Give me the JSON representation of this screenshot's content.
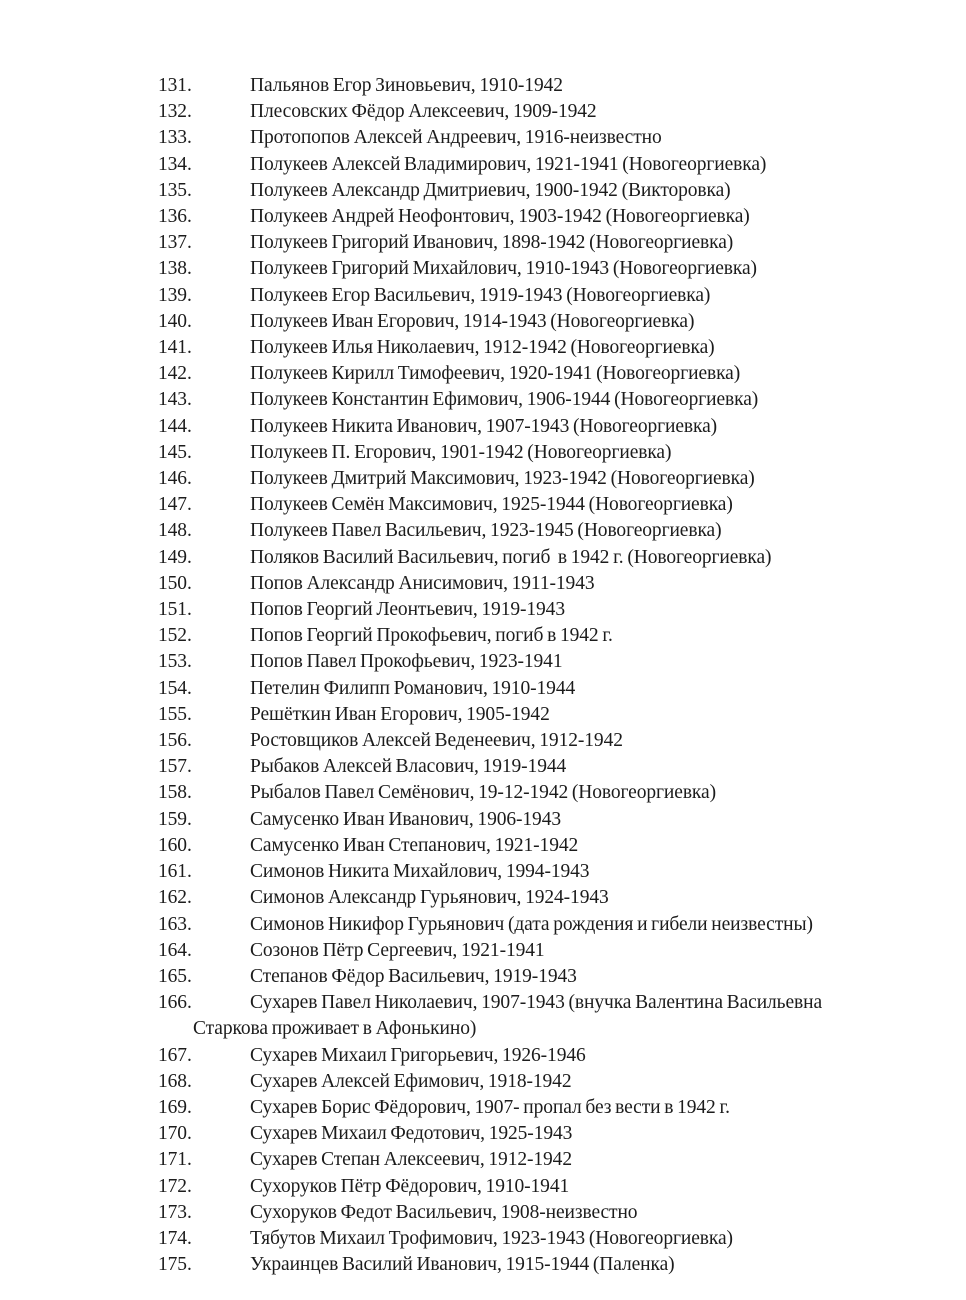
{
  "page": {
    "background_color": "#ffffff",
    "text_color": "#1c1c1c",
    "list": {
      "entries": [
        {
          "num": "131.",
          "text": "Пальянов Егор Зиновьевич, 1910-1942"
        },
        {
          "num": "132.",
          "text": "Плесовских Фёдор Алексеевич, 1909-1942"
        },
        {
          "num": "133.",
          "text": "Протопопов Алексей Андреевич, 1916-неизвестно"
        },
        {
          "num": "134.",
          "text": "Полукеев Алексей Владимирович, 1921-1941 (Новогеоргиевка)"
        },
        {
          "num": "135.",
          "text": "Полукеев Александр Дмитриевич, 1900-1942 (Викторовка)"
        },
        {
          "num": "136.",
          "text": "Полукеев Андрей Неофонтович, 1903-1942 (Новогеоргиевка)"
        },
        {
          "num": "137.",
          "text": "Полукеев Григорий Иванович, 1898-1942 (Новогеоргиевка)"
        },
        {
          "num": "138.",
          "text": "Полукеев Григорий Михайлович, 1910-1943 (Новогеоргиевка)"
        },
        {
          "num": "139.",
          "text": "Полукеев Егор Васильевич, 1919-1943 (Новогеоргиевка)"
        },
        {
          "num": "140.",
          "text": "Полукеев Иван Егорович, 1914-1943 (Новогеоргиевка)"
        },
        {
          "num": "141.",
          "text": "Полукеев Илья Николаевич, 1912-1942 (Новогеоргиевка)"
        },
        {
          "num": "142.",
          "text": "Полукеев Кирилл Тимофеевич, 1920-1941 (Новогеоргиевка)"
        },
        {
          "num": "143.",
          "text": "Полукеев Константин Ефимович, 1906-1944 (Новогеоргиевка)"
        },
        {
          "num": "144.",
          "text": "Полукеев Никита Иванович, 1907-1943 (Новогеоргиевка)"
        },
        {
          "num": "145.",
          "text": "Полукеев П. Егорович, 1901-1942 (Новогеоргиевка)"
        },
        {
          "num": "146.",
          "text": "Полукеев Дмитрий Максимович, 1923-1942 (Новогеоргиевка)"
        },
        {
          "num": "147.",
          "text": "Полукеев Семён Максимович, 1925-1944 (Новогеоргиевка)"
        },
        {
          "num": "148.",
          "text": "Полукеев Павел Васильевич, 1923-1945 (Новогеоргиевка)"
        },
        {
          "num": "149.",
          "text": "Поляков Василий Васильевич, погиб  в 1942 г. (Новогеоргиевка)"
        },
        {
          "num": "150.",
          "text": "Попов Александр Анисимович, 1911-1943"
        },
        {
          "num": "151.",
          "text": "Попов Георгий Леонтьевич, 1919-1943"
        },
        {
          "num": "152.",
          "text": "Попов Георгий Прокофьевич, погиб в 1942 г."
        },
        {
          "num": "153.",
          "text": "Попов Павел Прокофьевич, 1923-1941"
        },
        {
          "num": "154.",
          "text": "Петелин Филипп Романович, 1910-1944"
        },
        {
          "num": "155.",
          "text": "Решёткин Иван Егорович, 1905-1942"
        },
        {
          "num": "156.",
          "text": "Ростовщиков Алексей Веденеевич, 1912-1942"
        },
        {
          "num": "157.",
          "text": "Рыбаков Алексей Власович, 1919-1944"
        },
        {
          "num": "158.",
          "text": "Рыбалов Павел Семёнович, 19-12-1942 (Новогеоргиевка)"
        },
        {
          "num": "159.",
          "text": "Самусенко Иван Иванович, 1906-1943"
        },
        {
          "num": "160.",
          "text": "Самусенко Иван Степанович, 1921-1942"
        },
        {
          "num": "161.",
          "text": "Симонов Никита Михайлович, 1994-1943"
        },
        {
          "num": "162.",
          "text": "Симонов Александр Гурьянович, 1924-1943"
        },
        {
          "num": "163.",
          "text": "Симонов Никифор Гурьянович (дата рождения и гибели неизвестны)"
        },
        {
          "num": "164.",
          "text": "Созонов Пётр Сергеевич, 1921-1941"
        },
        {
          "num": "165.",
          "text": "Степанов Фёдор Васильевич, 1919-1943"
        },
        {
          "num": "166.",
          "text": "Сухарев Павел Николаевич, 1907-1943 (внучка Валентина Васильевна\nСтаркова проживает в Афонькино)"
        },
        {
          "num": "167.",
          "text": "Сухарев Михаил Григорьевич, 1926-1946"
        },
        {
          "num": "168.",
          "text": "Сухарев Алексей Ефимович, 1918-1942"
        },
        {
          "num": "169.",
          "text": "Сухарев Борис Фёдорович, 1907- пропал без вести в 1942 г."
        },
        {
          "num": "170.",
          "text": "Сухарев Михаил Федотович, 1925-1943"
        },
        {
          "num": "171.",
          "text": "Сухарев Степан Алексеевич, 1912-1942"
        },
        {
          "num": "172.",
          "text": "Сухоруков Пётр Фёдорович, 1910-1941"
        },
        {
          "num": "173.",
          "text": "Сухоруков Федот Васильевич, 1908-неизвестно"
        },
        {
          "num": "174.",
          "text": "Тябутов Михаил Трофимович, 1923-1943 (Новогеоргиевка)"
        },
        {
          "num": "175.",
          "text": "Украинцев Василий Иванович, 1915-1944 (Паленка)"
        }
      ]
    }
  }
}
